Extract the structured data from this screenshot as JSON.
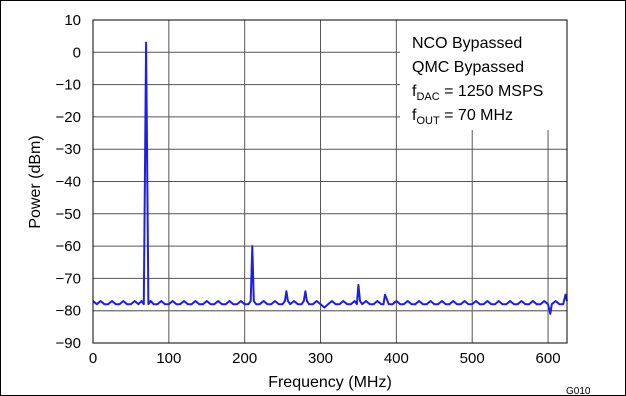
{
  "chart_data": {
    "type": "line",
    "xlabel": "Frequency (MHz)",
    "ylabel": "Power (dBm)",
    "xlim": [
      0,
      625
    ],
    "ylim": [
      -90,
      10
    ],
    "xticks": [
      0,
      100,
      200,
      300,
      400,
      500,
      600
    ],
    "yticks": [
      10,
      0,
      -10,
      -20,
      -30,
      -40,
      -50,
      -60,
      -70,
      -80,
      -90
    ],
    "grid": true,
    "line_color": "#1f1fe0",
    "reference_line": -80,
    "annotations": [
      {
        "main": "NCO Bypassed"
      },
      {
        "main": "QMC Bypassed"
      },
      {
        "main": "f",
        "sub": "DAC",
        "rest": " = 1250 MSPS"
      },
      {
        "main": "f",
        "sub": "OUT",
        "rest": " = 70 MHz"
      }
    ],
    "figure_code": "G010",
    "series": [
      {
        "x": [
          0,
          5,
          10,
          15,
          20,
          25,
          30,
          35,
          40,
          45,
          50,
          55,
          60,
          64,
          67,
          70,
          73,
          76,
          80,
          85,
          90,
          95,
          100,
          105,
          110,
          115,
          120,
          125,
          130,
          135,
          140,
          145,
          150,
          155,
          160,
          165,
          170,
          175,
          180,
          185,
          190,
          195,
          200,
          205,
          208,
          210,
          212,
          215,
          220,
          225,
          230,
          235,
          240,
          245,
          250,
          253,
          255,
          257,
          260,
          265,
          270,
          275,
          278,
          280,
          282,
          285,
          290,
          295,
          300,
          305,
          310,
          315,
          320,
          325,
          330,
          335,
          340,
          345,
          348,
          350,
          352,
          355,
          360,
          365,
          370,
          375,
          380,
          383,
          385,
          390,
          395,
          400,
          405,
          410,
          415,
          420,
          425,
          430,
          435,
          440,
          445,
          450,
          455,
          460,
          465,
          470,
          475,
          480,
          485,
          490,
          495,
          500,
          505,
          510,
          515,
          520,
          525,
          530,
          535,
          540,
          545,
          550,
          555,
          560,
          565,
          570,
          575,
          580,
          585,
          590,
          595,
          600,
          603,
          605,
          610,
          615,
          620,
          623,
          625
        ],
        "y": [
          -77,
          -78,
          -77,
          -78,
          -78,
          -77,
          -78,
          -78,
          -77,
          -78,
          -78,
          -77,
          -78,
          -77,
          -78,
          3,
          -78,
          -77,
          -78,
          -78,
          -77,
          -78,
          -78,
          -77,
          -78,
          -78,
          -77,
          -78,
          -78,
          -77,
          -78,
          -78,
          -77,
          -78,
          -78,
          -77,
          -78,
          -78,
          -77,
          -78,
          -78,
          -77,
          -78,
          -78,
          -77,
          -60,
          -77,
          -78,
          -78,
          -77,
          -78,
          -78,
          -77,
          -78,
          -78,
          -77,
          -74,
          -77,
          -78,
          -77,
          -78,
          -78,
          -77,
          -74,
          -77,
          -78,
          -78,
          -77,
          -78,
          -79,
          -78,
          -77,
          -78,
          -78,
          -77,
          -78,
          -78,
          -77,
          -78,
          -72,
          -77,
          -78,
          -77,
          -78,
          -78,
          -77,
          -78,
          -78,
          -75,
          -78,
          -78,
          -77,
          -78,
          -78,
          -77,
          -78,
          -78,
          -77,
          -78,
          -78,
          -77,
          -78,
          -78,
          -77,
          -78,
          -78,
          -77,
          -78,
          -78,
          -77,
          -78,
          -78,
          -77,
          -78,
          -78,
          -77,
          -78,
          -78,
          -77,
          -78,
          -78,
          -77,
          -78,
          -78,
          -77,
          -78,
          -78,
          -77,
          -78,
          -78,
          -77,
          -78,
          -81,
          -78,
          -77,
          -78,
          -78,
          -75,
          -77
        ]
      }
    ]
  }
}
